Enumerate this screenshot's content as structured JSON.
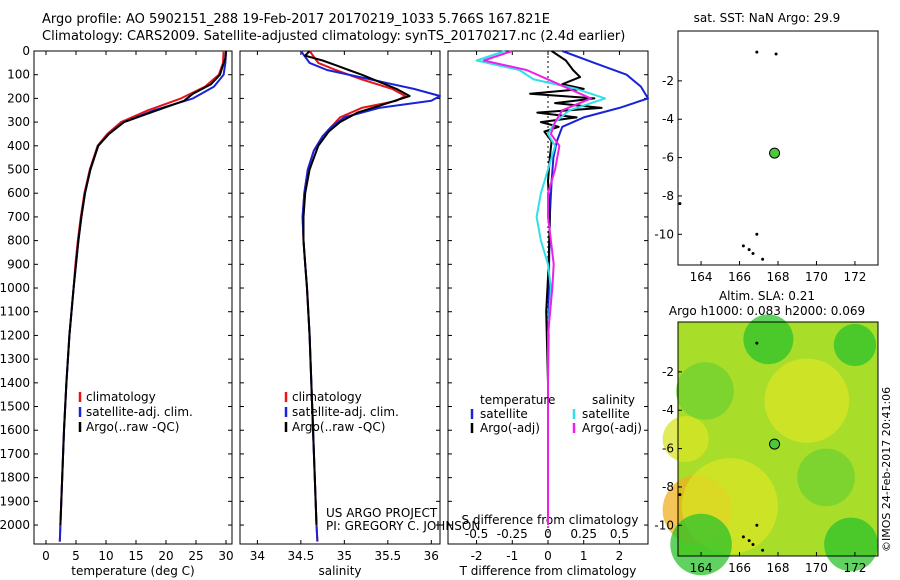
{
  "header": {
    "line1": "Argo profile: AO 5902151_288 19-Feb-2017 20170219_1033 5.766S 167.821E",
    "line2": "Climatology: CARS2009. Satellite-adjusted climatology: synTS_20170217.nc (2.4d earlier)"
  },
  "colors": {
    "climatology": "#e8141a",
    "satellite": "#1a23d6",
    "argo": "#000000",
    "satellite_salinity": "#2fe0e8",
    "argo_salinity": "#f01ee8",
    "marker": "#4dc83c"
  },
  "chart_data": [
    {
      "id": "temperature",
      "type": "line",
      "xlabel": "temperature (deg C)",
      "ylabel": "",
      "xlim": [
        -2,
        31
      ],
      "ylim": [
        2080,
        0
      ],
      "xticks": [
        0,
        5,
        10,
        15,
        20,
        25,
        30
      ],
      "yticks": [
        0,
        100,
        200,
        300,
        400,
        500,
        600,
        700,
        800,
        900,
        1000,
        1100,
        1200,
        1300,
        1400,
        1500,
        1600,
        1700,
        1800,
        1900,
        2000
      ],
      "legend": [
        "climatology",
        "satellite-adj. clim.",
        "Argo(..raw -QC)"
      ],
      "series": [
        {
          "name": "climatology",
          "color": "red",
          "depth": [
            0,
            50,
            100,
            150,
            200,
            250,
            300,
            350,
            400,
            500,
            600,
            700,
            800,
            900,
            1000,
            1200,
            1400,
            1600,
            1800,
            2000,
            2070
          ],
          "values": [
            29.6,
            29.5,
            28.8,
            26.5,
            22.5,
            17.0,
            12.5,
            10.2,
            8.6,
            7.3,
            6.4,
            5.8,
            5.3,
            4.9,
            4.6,
            3.9,
            3.4,
            3.0,
            2.7,
            2.4,
            2.3
          ]
        },
        {
          "name": "satellite-adj. clim.",
          "color": "blue",
          "depth": [
            0,
            50,
            100,
            150,
            200,
            250,
            300,
            350,
            400,
            500,
            600,
            700,
            800,
            900,
            1000,
            1200,
            1400,
            1600,
            1800,
            2000,
            2070
          ],
          "values": [
            30.0,
            29.9,
            29.6,
            28.0,
            24.5,
            18.0,
            13.0,
            10.4,
            8.7,
            7.4,
            6.5,
            5.9,
            5.4,
            5.0,
            4.6,
            3.9,
            3.4,
            3.0,
            2.7,
            2.4,
            2.3
          ]
        },
        {
          "name": "Argo(..raw -QC)",
          "color": "black",
          "depth": [
            0,
            30,
            60,
            100,
            140,
            180,
            210,
            250,
            300,
            350,
            400,
            500,
            600,
            700,
            800,
            900,
            1000,
            1200,
            1400,
            1600,
            1800,
            2000
          ],
          "values": [
            30.0,
            29.9,
            29.5,
            29.0,
            27.5,
            24.5,
            23.0,
            18.5,
            13.0,
            10.5,
            8.7,
            7.4,
            6.5,
            5.9,
            5.4,
            5.0,
            4.6,
            3.9,
            3.4,
            3.0,
            2.7,
            2.4
          ]
        }
      ]
    },
    {
      "id": "salinity",
      "type": "line",
      "xlabel": "salinity",
      "xlim": [
        33.8,
        36.1
      ],
      "ylim": [
        2080,
        0
      ],
      "xticks": [
        34,
        34.5,
        35,
        35.5,
        36
      ],
      "legend": [
        "climatology",
        "satellite-adj. clim.",
        "Argo(..raw -QC)"
      ],
      "series": [
        {
          "name": "climatology",
          "color": "red",
          "depth": [
            0,
            50,
            80,
            120,
            160,
            190,
            210,
            240,
            280,
            320,
            360,
            420,
            500,
            600,
            700,
            800,
            900,
            1000,
            1200,
            1500,
            2000,
            2070
          ],
          "values": [
            34.6,
            34.7,
            34.9,
            35.2,
            35.55,
            35.7,
            35.6,
            35.2,
            34.95,
            34.85,
            34.75,
            34.65,
            34.58,
            34.54,
            34.52,
            34.53,
            34.55,
            34.57,
            34.6,
            34.63,
            34.68,
            34.69
          ]
        },
        {
          "name": "satellite-adj. clim.",
          "color": "blue",
          "depth": [
            0,
            50,
            80,
            120,
            160,
            190,
            210,
            240,
            280,
            320,
            360,
            420,
            500,
            600,
            700,
            800,
            900,
            1000,
            1200,
            1500,
            2000,
            2070
          ],
          "values": [
            34.5,
            34.6,
            34.8,
            35.3,
            35.8,
            36.1,
            36.0,
            35.4,
            35.0,
            34.85,
            34.75,
            34.65,
            34.58,
            34.54,
            34.52,
            34.53,
            34.55,
            34.57,
            34.6,
            34.63,
            34.68,
            34.69
          ]
        },
        {
          "name": "Argo(..raw -QC)",
          "color": "black",
          "depth": [
            0,
            20,
            40,
            60,
            80,
            100,
            130,
            160,
            190,
            220,
            260,
            300,
            340,
            400,
            500,
            600,
            700,
            800,
            900,
            1000,
            1200,
            1500,
            1800,
            2000
          ],
          "values": [
            34.6,
            34.55,
            34.75,
            34.9,
            35.05,
            35.2,
            35.4,
            35.6,
            35.75,
            35.5,
            35.15,
            34.95,
            34.82,
            34.7,
            34.6,
            34.55,
            34.53,
            34.53,
            34.55,
            34.57,
            34.6,
            34.63,
            34.66,
            34.68
          ]
        }
      ]
    },
    {
      "id": "difference",
      "type": "line",
      "xlabel": "T difference from climatology",
      "xlabel2": "S difference from climatology",
      "xlim": [
        -2.8,
        2.8
      ],
      "ylim": [
        2080,
        0
      ],
      "xticks": [
        -2,
        -1,
        0,
        1,
        2
      ],
      "xticks_s": [
        -0.5,
        -0.25,
        0,
        0.25,
        0.5
      ],
      "legend": [
        "temperature",
        "satellite",
        "Argo(-adj)",
        "salinity",
        "satellite",
        "Argo(-adj)"
      ],
      "series": [
        {
          "name": "temperature satellite",
          "color": "blue",
          "depth": [
            0,
            50,
            100,
            150,
            200,
            240,
            280,
            320,
            380,
            450,
            550,
            700,
            900,
            1100,
            1400,
            1700,
            2000
          ],
          "values": [
            0.4,
            1.3,
            2.2,
            2.6,
            2.8,
            2.0,
            1.0,
            0.4,
            0.25,
            0.15,
            0.1,
            0.05,
            0.03,
            0.02,
            0.0,
            0.0,
            0.0
          ]
        },
        {
          "name": "temperature Argo(-adj)",
          "color": "black",
          "depth": [
            0,
            40,
            80,
            110,
            140,
            160,
            180,
            200,
            220,
            240,
            260,
            280,
            300,
            320,
            340,
            380,
            450,
            550,
            700,
            900,
            1100,
            1400,
            1700,
            2000
          ],
          "values": [
            0.1,
            0.5,
            0.7,
            0.9,
            0.4,
            1.0,
            -0.5,
            1.3,
            0.2,
            1.5,
            -0.3,
            0.8,
            -0.2,
            0.3,
            -0.1,
            0.1,
            0.05,
            0.0,
            0.05,
            0.02,
            -0.05,
            0.0,
            0.0,
            0.0
          ]
        },
        {
          "name": "salinity satellite",
          "color": "cyan",
          "depth": [
            0,
            40,
            80,
            120,
            160,
            200,
            250,
            300,
            350,
            400,
            500,
            600,
            700,
            800,
            900,
            1000,
            1200,
            1400,
            1700,
            2000
          ],
          "values": [
            -0.3,
            -0.5,
            -0.2,
            -0.1,
            0.2,
            0.4,
            0.15,
            0.05,
            0.0,
            0.05,
            0.0,
            -0.05,
            -0.08,
            -0.05,
            0.0,
            0.02,
            0.0,
            0.0,
            0.0,
            0.0
          ]
        },
        {
          "name": "salinity Argo(-adj)",
          "color": "magenta",
          "depth": [
            0,
            40,
            80,
            120,
            160,
            200,
            250,
            300,
            350,
            400,
            500,
            600,
            700,
            800,
            900,
            1000,
            1200,
            1400,
            1700,
            2000
          ],
          "values": [
            -0.25,
            -0.45,
            -0.15,
            0.0,
            0.15,
            0.3,
            0.1,
            0.05,
            0.02,
            0.08,
            0.05,
            0.0,
            0.0,
            0.02,
            0.04,
            0.03,
            0.0,
            0.0,
            0.0,
            0.0
          ]
        }
      ]
    },
    {
      "id": "sst-map",
      "type": "scatter",
      "title": "sat. SST: NaN Argo: 29.9",
      "xlim": [
        162.8,
        173.2
      ],
      "ylim": [
        -11.6,
        0.6
      ],
      "xticks": [
        164,
        166,
        168,
        170,
        172
      ],
      "yticks": [
        -2,
        -4,
        -6,
        -8,
        -10
      ],
      "argo_position": {
        "lon": 167.821,
        "lat": -5.766
      },
      "islands": [
        [
          166.9,
          -0.5
        ],
        [
          167.9,
          -0.6
        ],
        [
          162.9,
          -8.4
        ],
        [
          166.2,
          -10.6
        ],
        [
          166.5,
          -10.8
        ],
        [
          166.9,
          -10.0
        ],
        [
          167.2,
          -11.3
        ],
        [
          166.7,
          -11.0
        ]
      ]
    },
    {
      "id": "sla-map",
      "type": "heatmap",
      "title": "Altim. SLA: 0.21",
      "subtitle": "Argo h1000: 0.083 h2000: 0.069",
      "xlim": [
        162.8,
        173.2
      ],
      "ylim": [
        -11.6,
        0.6
      ],
      "xticks": [
        164,
        166,
        168,
        170,
        172
      ],
      "yticks": [
        -2,
        -4,
        -6,
        -8,
        -10
      ],
      "argo_position": {
        "lon": 167.821,
        "lat": -5.766
      },
      "islands": [
        [
          166.9,
          -0.5
        ],
        [
          162.9,
          -8.4
        ],
        [
          166.2,
          -10.6
        ],
        [
          166.5,
          -10.8
        ],
        [
          166.9,
          -10.0
        ],
        [
          167.2,
          -11.3
        ],
        [
          166.7,
          -11.0
        ]
      ],
      "blobs": [
        {
          "lon": 172.0,
          "lat": -0.6,
          "r": 1.1,
          "level": "green"
        },
        {
          "lon": 163.8,
          "lat": -9.2,
          "r": 1.8,
          "level": "orange"
        },
        {
          "lon": 165.5,
          "lat": -9.0,
          "r": 2.5,
          "level": "yellow"
        },
        {
          "lon": 164.0,
          "lat": -11.0,
          "r": 1.6,
          "level": "green"
        },
        {
          "lon": 171.8,
          "lat": -11.0,
          "r": 1.4,
          "level": "green"
        },
        {
          "lon": 169.5,
          "lat": -3.5,
          "r": 2.2,
          "level": "yellow"
        },
        {
          "lon": 167.5,
          "lat": -0.3,
          "r": 1.3,
          "level": "green"
        },
        {
          "lon": 164.2,
          "lat": -3.0,
          "r": 1.5,
          "level": "lightgreen"
        },
        {
          "lon": 170.5,
          "lat": -7.5,
          "r": 1.5,
          "level": "lightgreen"
        },
        {
          "lon": 163.2,
          "lat": -5.5,
          "r": 1.2,
          "level": "yellow"
        }
      ]
    }
  ],
  "credits": {
    "project": "US ARGO PROJECT",
    "pi": "PI: GREGORY C. JOHNSON",
    "imos": "©IMOS 24-Feb-2017 20:41:06"
  }
}
